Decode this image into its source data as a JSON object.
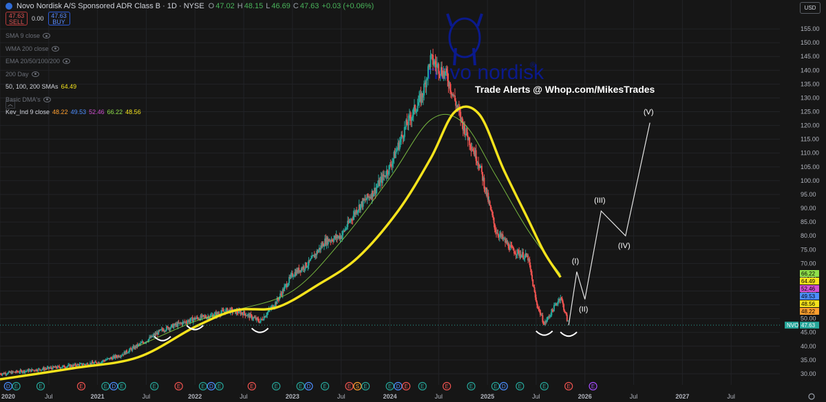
{
  "header": {
    "title": "Novo Nordisk A/S Sponsored ADR Class B · 1D · NYSE",
    "ohlc": [
      {
        "k": "O",
        "v": "47.02"
      },
      {
        "k": "H",
        "v": "48.15"
      },
      {
        "k": "L",
        "v": "46.69"
      },
      {
        "k": "C",
        "v": "47.63"
      },
      {
        "k": "",
        "v": "+0.03 (+0.06%)"
      }
    ]
  },
  "trade": {
    "sell_price": "47.63",
    "sell_label": "SELL",
    "spread": "0.00",
    "buy_price": "47.63",
    "buy_label": "BUY"
  },
  "indicators": [
    {
      "name": "SMA 9 close",
      "dim": true,
      "values": []
    },
    {
      "name": "WMA 200 close",
      "dim": true,
      "values": []
    },
    {
      "name": "EMA 20/50/100/200",
      "dim": true,
      "values": []
    },
    {
      "name": "200 Day",
      "dim": true,
      "values": []
    },
    {
      "name": "50, 100, 200 SMAs",
      "dim": false,
      "values": [
        {
          "v": "64.49",
          "color": "#f5e31c"
        }
      ]
    },
    {
      "name": "Basic DMA's",
      "dim": true,
      "values": []
    },
    {
      "name": "Kev_Ind 9 close",
      "dim": false,
      "values": [
        {
          "v": "48.22",
          "color": "#ff9f2e"
        },
        {
          "v": "49.53",
          "color": "#4c8dff"
        },
        {
          "v": "52.46",
          "color": "#d14fd1"
        },
        {
          "v": "66.22",
          "color": "#8fe04a"
        },
        {
          "v": "48.56",
          "color": "#f5e31c"
        }
      ]
    }
  ],
  "collapse_icon": "chevron-up-icon",
  "currency": "USD",
  "logo": {
    "text": "novo nordisk",
    "registered": "®",
    "color": "#0b1a8c"
  },
  "banner": "Trade Alerts @ Whop.com/MikesTrades",
  "colors": {
    "bg": "#161616",
    "candle_up": "#26a69a",
    "candle_down": "#ef5350",
    "sma200": "#f5e31c",
    "projection": "#e6e6e6"
  },
  "chart_data": {
    "type": "line",
    "title": "",
    "xlabel": "",
    "ylabel": "",
    "y_axis_side": "right",
    "ylim": [
      26,
      160
    ],
    "grid": true,
    "x_ticks": [
      "2020",
      "Jul",
      "2021",
      "Jul",
      "2022",
      "Jul",
      "2023",
      "Jul",
      "2024",
      "Jul",
      "2025",
      "Jul",
      "2026",
      "Jul",
      "2027",
      "Jul"
    ],
    "x_tick_bold": [
      true,
      false,
      true,
      false,
      true,
      false,
      true,
      false,
      true,
      false,
      true,
      false,
      true,
      false,
      true,
      false
    ],
    "y_ticks": [
      30,
      35,
      40,
      45,
      50,
      55,
      60,
      65,
      70,
      75,
      80,
      85,
      90,
      95,
      100,
      105,
      110,
      115,
      120,
      125,
      130,
      135,
      140,
      145,
      150,
      155
    ],
    "series": [
      {
        "role": "price",
        "style": "candles",
        "x": [
          "2020-01",
          "2020-04",
          "2020-07",
          "2020-10",
          "2021-01",
          "2021-04",
          "2021-07",
          "2021-09",
          "2021-11",
          "2022-01",
          "2022-03",
          "2022-05",
          "2022-07",
          "2022-09",
          "2022-11",
          "2023-01",
          "2023-03",
          "2023-05",
          "2023-07",
          "2023-09",
          "2023-11",
          "2024-01",
          "2024-03",
          "2024-05",
          "2024-06",
          "2024-08",
          "2024-10",
          "2024-12",
          "2025-02",
          "2025-04",
          "2025-06",
          "2025-07",
          "2025-08",
          "2025-10",
          "2025-11"
        ],
        "y": [
          30,
          31,
          32,
          33,
          34,
          37,
          42,
          46,
          48,
          50,
          51,
          53,
          52,
          49,
          56,
          66,
          70,
          78,
          80,
          90,
          96,
          105,
          120,
          131,
          144,
          138,
          120,
          106,
          82,
          75,
          72,
          56,
          48,
          58,
          47.63
        ]
      },
      {
        "role": "sma200",
        "style": "line",
        "color": "#f5e31c",
        "x": [
          "2020-01",
          "2020-10",
          "2021-06",
          "2022-01",
          "2022-06",
          "2022-11",
          "2023-04",
          "2023-09",
          "2024-02",
          "2024-06",
          "2024-09",
          "2024-12",
          "2025-03",
          "2025-06",
          "2025-08",
          "2025-10"
        ],
        "y": [
          28,
          32,
          36,
          47,
          53,
          54,
          62,
          72,
          89,
          108,
          125,
          124,
          104,
          86,
          74,
          65
        ]
      },
      {
        "role": "sma100",
        "style": "line",
        "color": "#8fe04a",
        "x": [
          "2021-06",
          "2022-01",
          "2022-06",
          "2023-01",
          "2023-07",
          "2024-01",
          "2024-06",
          "2024-10",
          "2025-02",
          "2025-06",
          "2025-10"
        ],
        "y": [
          40,
          49,
          53,
          60,
          78,
          101,
          122,
          121,
          102,
          82,
          66
        ]
      },
      {
        "role": "wave_projection",
        "style": "line",
        "color": "#e6e6e6",
        "x": [
          "2025-11",
          "2025-12",
          "2026-01",
          "2026-03",
          "2026-06",
          "2026-09"
        ],
        "y": [
          47.6,
          67,
          57,
          89,
          80,
          121
        ],
        "labels": [
          "",
          "(I)",
          "(II)",
          "(III)",
          "(IV)",
          "(V)"
        ]
      }
    ],
    "last_price": {
      "symbol": "NVO",
      "value": "47.63"
    },
    "right_badges": [
      {
        "v": "66.22",
        "bg": "#8fe04a"
      },
      {
        "v": "64.49",
        "bg": "#f5e31c"
      },
      {
        "v": "52.46",
        "bg": "#d14fd1"
      },
      {
        "v": "49.53",
        "bg": "#4c8dff"
      },
      {
        "v": "48.56",
        "bg": "#f5e31c"
      },
      {
        "v": "48.22",
        "bg": "#ff9f2e"
      }
    ],
    "events": [
      {
        "x": "2020-02",
        "kind": "D",
        "color": "#4c8dff"
      },
      {
        "x": "2020-03",
        "kind": "E",
        "color": "#26a69a"
      },
      {
        "x": "2020-06",
        "kind": "E",
        "color": "#26a69a"
      },
      {
        "x": "2020-11",
        "kind": "E",
        "color": "#ef5350"
      },
      {
        "x": "2021-02",
        "kind": "E",
        "color": "#26a69a"
      },
      {
        "x": "2021-03",
        "kind": "D",
        "color": "#4c8dff"
      },
      {
        "x": "2021-04",
        "kind": "E",
        "color": "#26a69a"
      },
      {
        "x": "2021-08",
        "kind": "E",
        "color": "#26a69a"
      },
      {
        "x": "2021-11",
        "kind": "E",
        "color": "#ef5350"
      },
      {
        "x": "2022-02",
        "kind": "E",
        "color": "#26a69a"
      },
      {
        "x": "2022-03",
        "kind": "D",
        "color": "#4c8dff"
      },
      {
        "x": "2022-04",
        "kind": "E",
        "color": "#26a69a"
      },
      {
        "x": "2022-08",
        "kind": "E",
        "color": "#ef5350"
      },
      {
        "x": "2022-11",
        "kind": "E",
        "color": "#26a69a"
      },
      {
        "x": "2023-02",
        "kind": "E",
        "color": "#26a69a"
      },
      {
        "x": "2023-03",
        "kind": "D",
        "color": "#4c8dff"
      },
      {
        "x": "2023-05",
        "kind": "E",
        "color": "#26a69a"
      },
      {
        "x": "2023-08",
        "kind": "E",
        "color": "#ef5350"
      },
      {
        "x": "2023-09",
        "kind": "S",
        "color": "#ff9f2e"
      },
      {
        "x": "2023-10",
        "kind": "E",
        "color": "#26a69a"
      },
      {
        "x": "2024-01",
        "kind": "E",
        "color": "#26a69a"
      },
      {
        "x": "2024-02",
        "kind": "D",
        "color": "#4c8dff"
      },
      {
        "x": "2024-03",
        "kind": "E",
        "color": "#ef5350"
      },
      {
        "x": "2024-05",
        "kind": "E",
        "color": "#26a69a"
      },
      {
        "x": "2024-08",
        "kind": "E",
        "color": "#ef5350"
      },
      {
        "x": "2024-11",
        "kind": "E",
        "color": "#26a69a"
      },
      {
        "x": "2025-02",
        "kind": "E",
        "color": "#26a69a"
      },
      {
        "x": "2025-03",
        "kind": "D",
        "color": "#4c8dff"
      },
      {
        "x": "2025-05",
        "kind": "E",
        "color": "#26a69a"
      },
      {
        "x": "2025-08",
        "kind": "E",
        "color": "#26a69a"
      },
      {
        "x": "2025-11",
        "kind": "E",
        "color": "#ef5350"
      },
      {
        "x": "2026-02",
        "kind": "E",
        "color": "#a64cff"
      }
    ],
    "support_bottoms": [
      "2021-09",
      "2022-01",
      "2022-09",
      "2025-08",
      "2025-11"
    ]
  }
}
